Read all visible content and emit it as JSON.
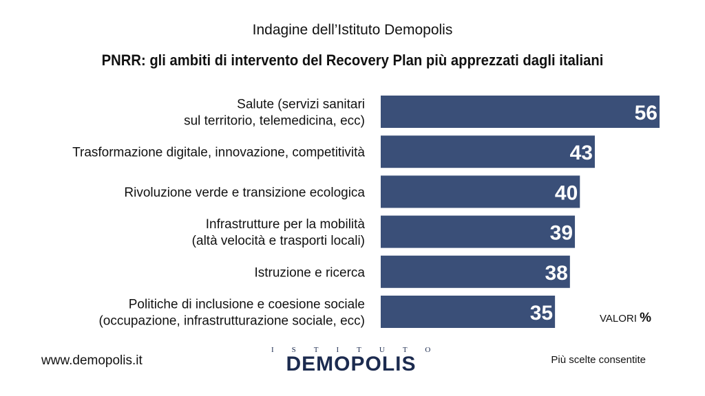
{
  "header": {
    "subtitle": "Indagine dell’Istituto Demopolis",
    "title": "PNRR: gli ambiti di intervento del Recovery Plan più apprezzati dagli italiani"
  },
  "chart_data": {
    "type": "bar",
    "orientation": "horizontal",
    "categories": [
      [
        "Salute (servizi sanitari",
        "sul territorio, telemedicina, ecc)"
      ],
      [
        "Trasformazione digitale, innovazione, competitività"
      ],
      [
        "Rivoluzione verde e transizione ecologica"
      ],
      [
        "Infrastrutture per la mobilità",
        "(altà velocità e trasporti locali)"
      ],
      [
        "Istruzione e ricerca"
      ],
      [
        "Politiche di inclusione e coesione sociale",
        "(occupazione, infrastrutturazione sociale, ecc)"
      ]
    ],
    "values": [
      56,
      43,
      40,
      39,
      38,
      35
    ],
    "value_labels": [
      "56",
      "43",
      "40",
      "39",
      "38",
      "35"
    ],
    "bar_color": "#3a4f78",
    "xlim": [
      0,
      56
    ],
    "grid": false,
    "unit_label": "VALORI",
    "unit_symbol": "%"
  },
  "footer": {
    "url": "www.demopolis.it",
    "note": "Più scelte consentite",
    "logo_top": "ISTITUTO",
    "logo_main": "DEMOPOLIS"
  }
}
